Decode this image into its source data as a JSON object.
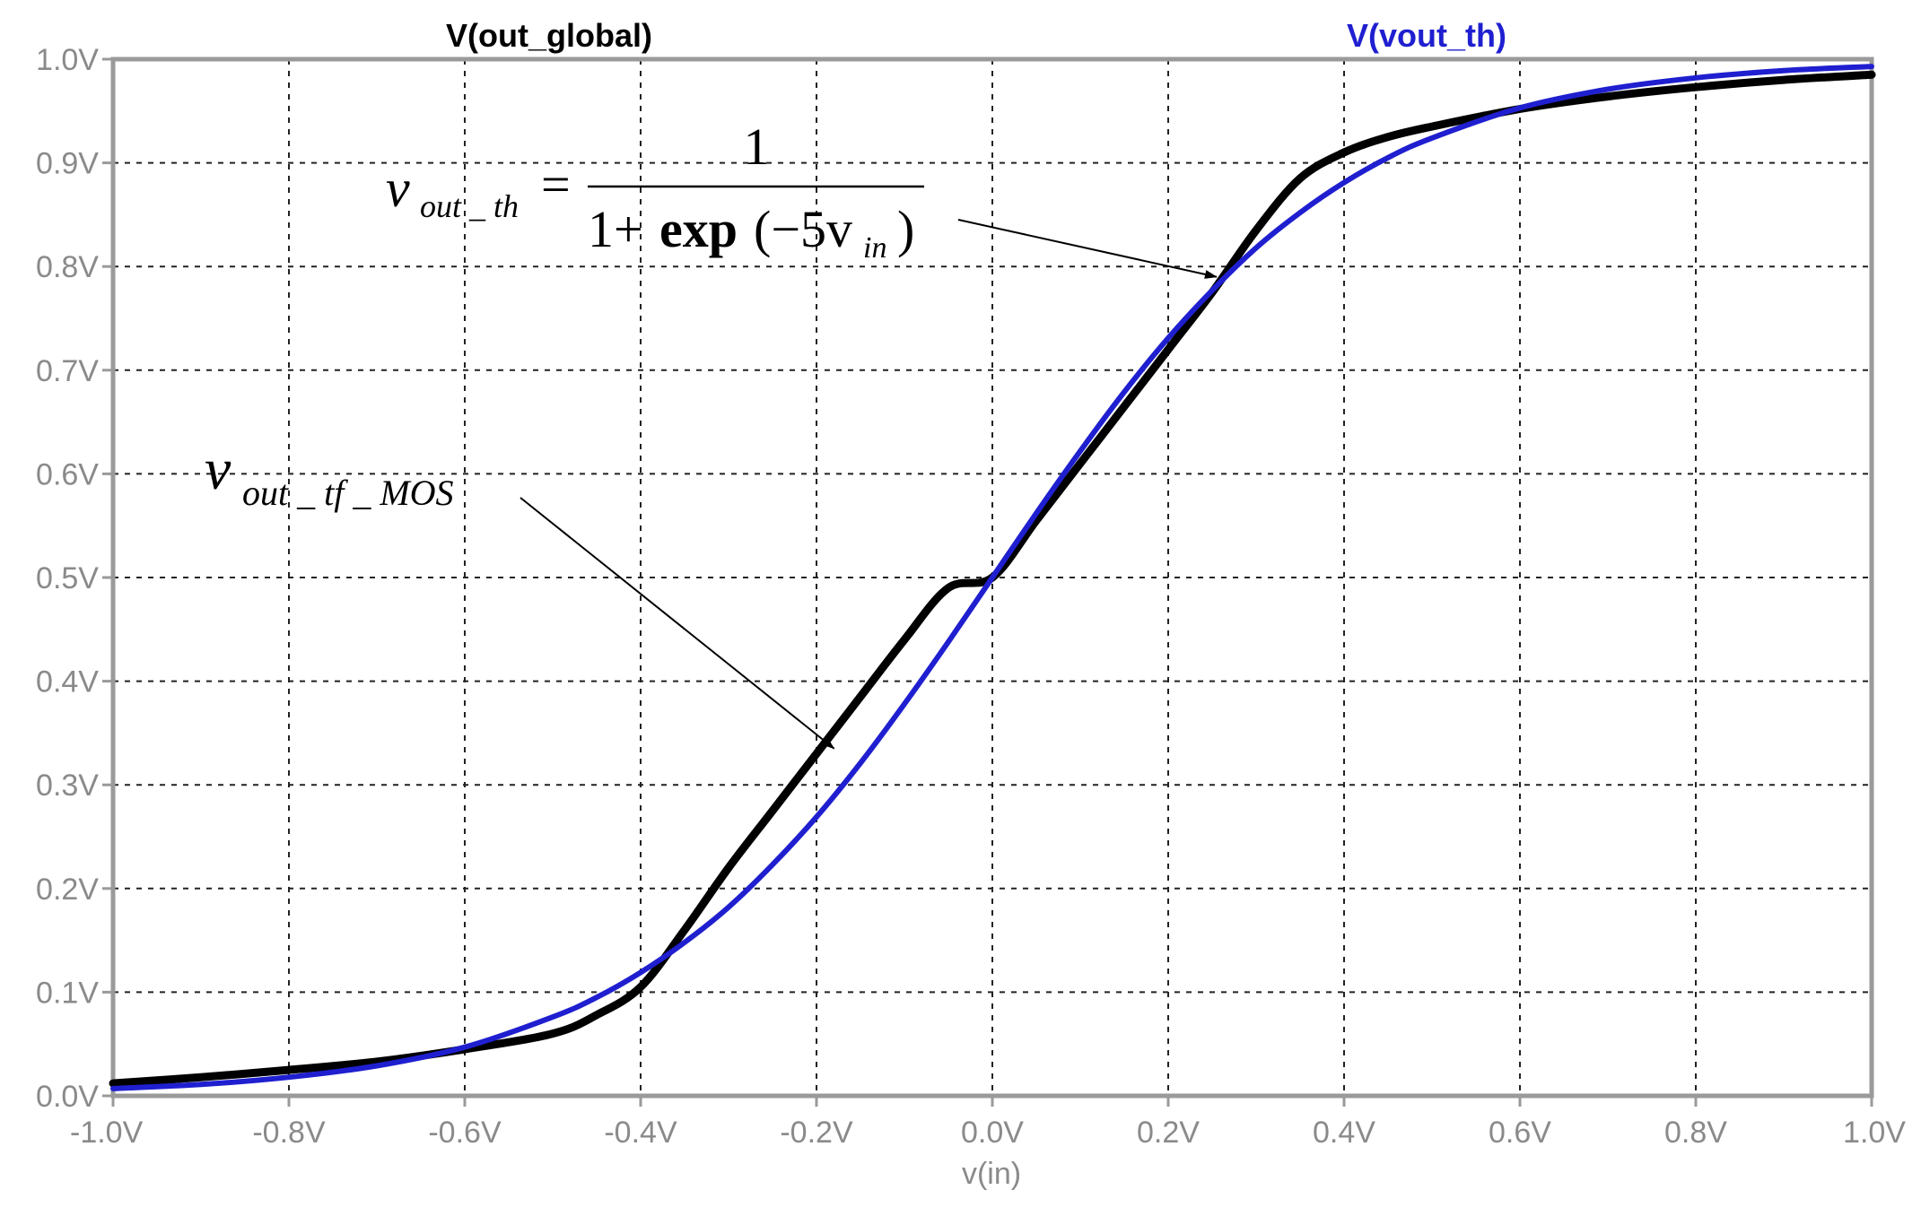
{
  "chart_data": {
    "type": "line",
    "title": "",
    "xlabel": "v(in)",
    "ylabel": "",
    "xlim": [
      -1.0,
      1.0
    ],
    "ylim": [
      0.0,
      1.0
    ],
    "grid": true,
    "x_ticks": [
      -1.0,
      -0.8,
      -0.6,
      -0.4,
      -0.2,
      0.0,
      0.2,
      0.4,
      0.6,
      0.8,
      1.0
    ],
    "x_tick_labels": [
      "-1.0V",
      "-0.8V",
      "-0.6V",
      "-0.4V",
      "-0.2V",
      "0.0V",
      "0.2V",
      "0.4V",
      "0.6V",
      "0.8V",
      "1.0V"
    ],
    "y_ticks": [
      0.0,
      0.1,
      0.2,
      0.3,
      0.4,
      0.5,
      0.6,
      0.7,
      0.8,
      0.9,
      1.0
    ],
    "y_tick_labels": [
      "0.0V",
      "0.1V",
      "0.2V",
      "0.3V",
      "0.4V",
      "0.5V",
      "0.6V",
      "0.7V",
      "0.8V",
      "0.9V",
      "1.0V"
    ],
    "legend_placement": "top",
    "series": [
      {
        "name": "V(out_global)",
        "color": "#000000",
        "x": [
          -1.0,
          -0.9,
          -0.8,
          -0.7,
          -0.6,
          -0.5,
          -0.45,
          -0.4,
          -0.35,
          -0.3,
          -0.25,
          -0.2,
          -0.15,
          -0.1,
          -0.05,
          0.0,
          0.05,
          0.1,
          0.15,
          0.2,
          0.25,
          0.3,
          0.35,
          0.4,
          0.45,
          0.5,
          0.6,
          0.7,
          0.8,
          0.9,
          1.0
        ],
        "y": [
          0.012,
          0.018,
          0.025,
          0.033,
          0.045,
          0.06,
          0.078,
          0.105,
          0.16,
          0.22,
          0.275,
          0.33,
          0.385,
          0.44,
          0.49,
          0.5,
          0.555,
          0.61,
          0.665,
          0.72,
          0.775,
          0.835,
          0.885,
          0.91,
          0.925,
          0.935,
          0.952,
          0.964,
          0.973,
          0.98,
          0.985
        ]
      },
      {
        "name": "V(vout_th)",
        "color": "#1f1fd0",
        "x": [
          -1.0,
          -0.9,
          -0.8,
          -0.7,
          -0.6,
          -0.5,
          -0.45,
          -0.4,
          -0.35,
          -0.3,
          -0.25,
          -0.2,
          -0.15,
          -0.1,
          -0.05,
          0.0,
          0.05,
          0.1,
          0.15,
          0.2,
          0.25,
          0.3,
          0.35,
          0.4,
          0.45,
          0.5,
          0.6,
          0.7,
          0.8,
          0.9,
          1.0
        ],
        "y": [
          0.007,
          0.011,
          0.018,
          0.029,
          0.047,
          0.076,
          0.095,
          0.119,
          0.148,
          0.182,
          0.223,
          0.269,
          0.321,
          0.378,
          0.438,
          0.5,
          0.562,
          0.622,
          0.679,
          0.731,
          0.777,
          0.818,
          0.852,
          0.881,
          0.905,
          0.924,
          0.953,
          0.971,
          0.982,
          0.989,
          0.993
        ]
      }
    ],
    "annotations": [
      {
        "name": "vout_th formula",
        "lhs_var": "v",
        "lhs_sub": "out _ th",
        "equals": "=",
        "numerator": "1",
        "denominator_prefix": "1+",
        "denominator_func": "exp",
        "denominator_arg": "(−5v",
        "denominator_sub": "in",
        "denominator_close": ")",
        "arrow_to": {
          "x": 0.255,
          "y": 0.79
        }
      },
      {
        "name": "vout_tf_MOS label",
        "var": "v",
        "sub": "out _ tf _ MOS",
        "arrow_to": {
          "x": -0.18,
          "y": 0.335
        }
      }
    ]
  }
}
